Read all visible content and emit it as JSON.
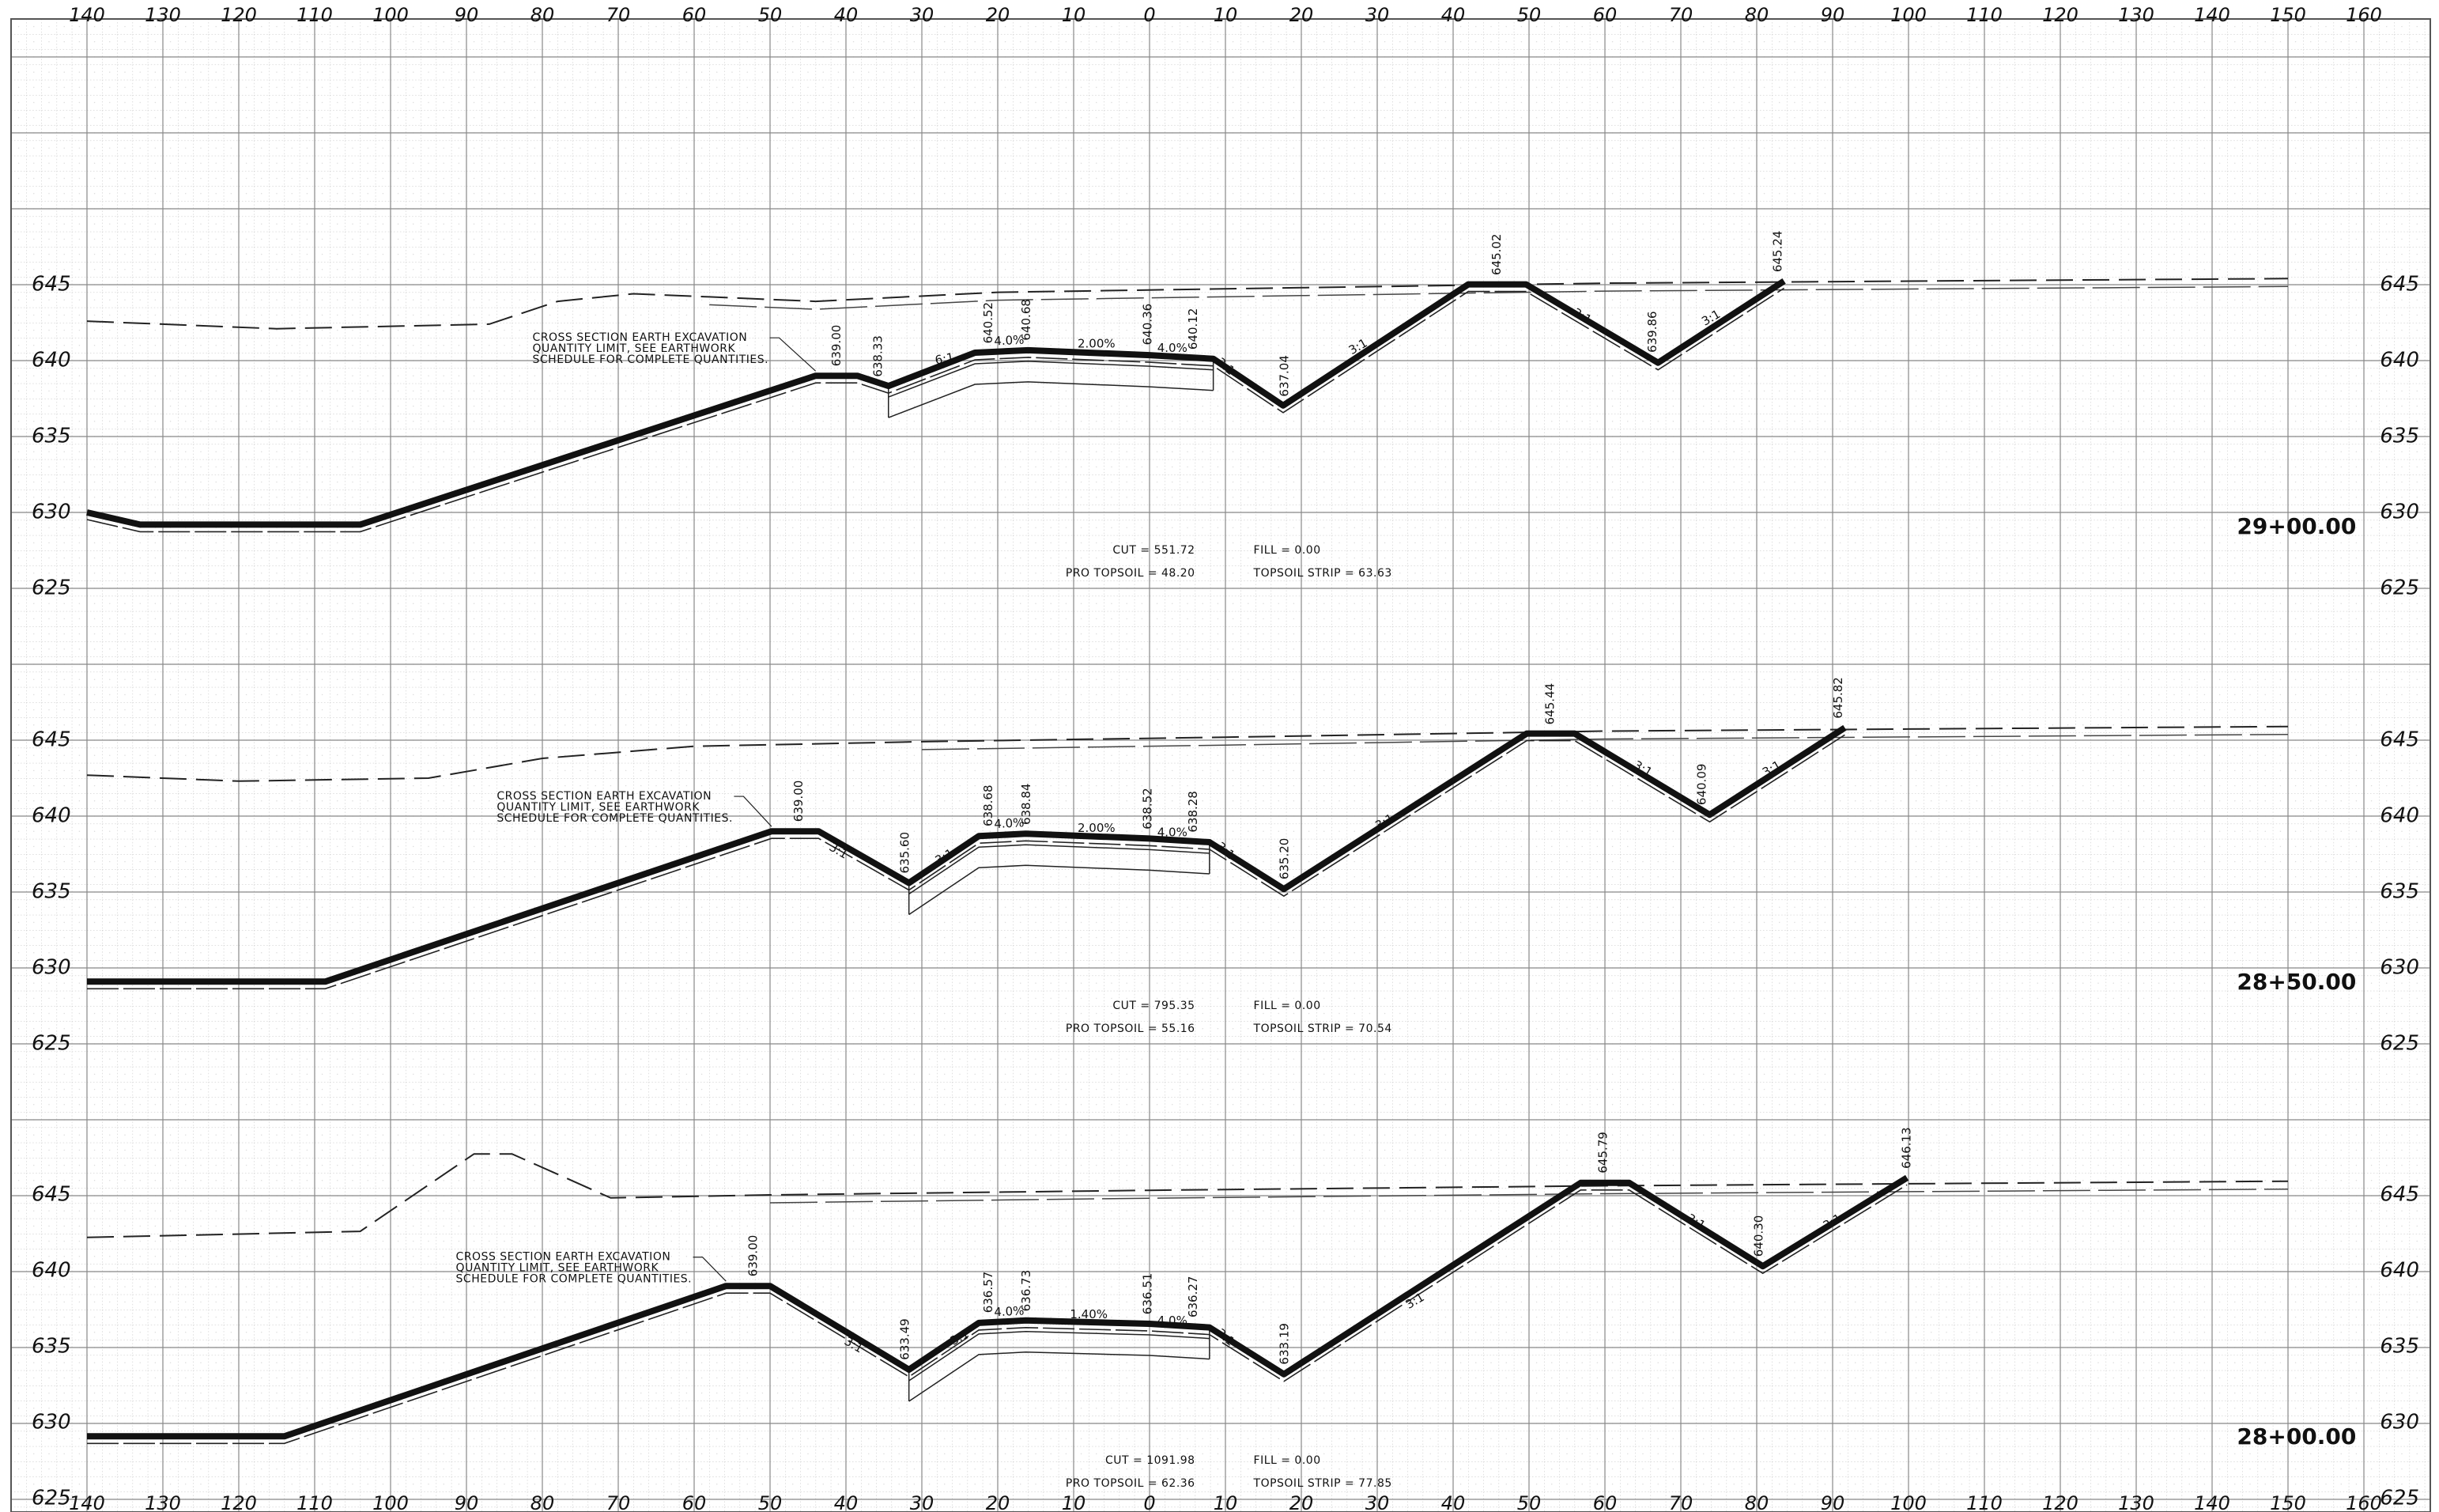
{
  "offsets": [
    "140",
    "130",
    "120",
    "110",
    "100",
    "90",
    "80",
    "70",
    "60",
    "50",
    "40",
    "30",
    "20",
    "10",
    "0",
    "10",
    "20",
    "30",
    "40",
    "50",
    "60",
    "70",
    "80",
    "90",
    "100",
    "110",
    "120",
    "130",
    "140",
    "150",
    "160"
  ],
  "sections": [
    {
      "station": "29+00.00",
      "elevations": [
        "645",
        "640",
        "635",
        "630",
        "625"
      ],
      "point_labels": [
        "639.00",
        "638.33",
        "640.52",
        "640.68",
        "640.36",
        "640.12",
        "637.04",
        "645.02",
        "639.86",
        "645.24"
      ],
      "slope_labels": [
        "6:1",
        "4.0%",
        "2.00%",
        "4.0%",
        "3:1",
        "3:1",
        "3:1",
        "3:1"
      ],
      "note": [
        "CROSS SECTION EARTH EXCAVATION",
        "QUANTITY LIMIT, SEE EARTHWORK",
        "SCHEDULE FOR COMPLETE QUANTITIES."
      ],
      "cut": "CUT = 551.72",
      "fill": "FILL = 0.00",
      "pro_topsoil": "PRO TOPSOIL = 48.20",
      "topsoil_strip": "TOPSOIL STRIP = 63.63"
    },
    {
      "station": "28+50.00",
      "elevations": [
        "645",
        "640",
        "635",
        "630",
        "625"
      ],
      "point_labels": [
        "639.00",
        "635.60",
        "638.68",
        "638.84",
        "638.52",
        "638.28",
        "635.20",
        "645.44",
        "640.09",
        "645.82"
      ],
      "slope_labels": [
        "3:1",
        "3:1",
        "4.0%",
        "2.00%",
        "4.0%",
        "3:1",
        "3:1",
        "3:1",
        "3:1"
      ],
      "note": [
        "CROSS SECTION EARTH EXCAVATION",
        "QUANTITY LIMIT, SEE EARTHWORK",
        "SCHEDULE FOR COMPLETE QUANTITIES."
      ],
      "cut": "CUT = 795.35",
      "fill": "FILL = 0.00",
      "pro_topsoil": "PRO TOPSOIL = 55.16",
      "topsoil_strip": "TOPSOIL STRIP = 70.54"
    },
    {
      "station": "28+00.00",
      "elevations": [
        "645",
        "640",
        "635",
        "630",
        "625"
      ],
      "point_labels": [
        "639.00",
        "633.49",
        "636.57",
        "636.73",
        "636.51",
        "636.27",
        "633.19",
        "645.79",
        "640.30",
        "646.13"
      ],
      "slope_labels": [
        "3:1",
        "3:1",
        "4.0%",
        "1.40%",
        "4.0%",
        "3:1",
        "3:1",
        "3:1",
        "3:1"
      ],
      "note": [
        "CROSS SECTION EARTH EXCAVATION",
        "QUANTITY LIMIT, SEE EARTHWORK",
        "SCHEDULE FOR COMPLETE QUANTITIES."
      ],
      "cut": "CUT = 1091.98",
      "fill": "FILL = 0.00",
      "pro_topsoil": "PRO TOPSOIL = 62.36",
      "topsoil_strip": "TOPSOIL STRIP = 77.85"
    }
  ]
}
